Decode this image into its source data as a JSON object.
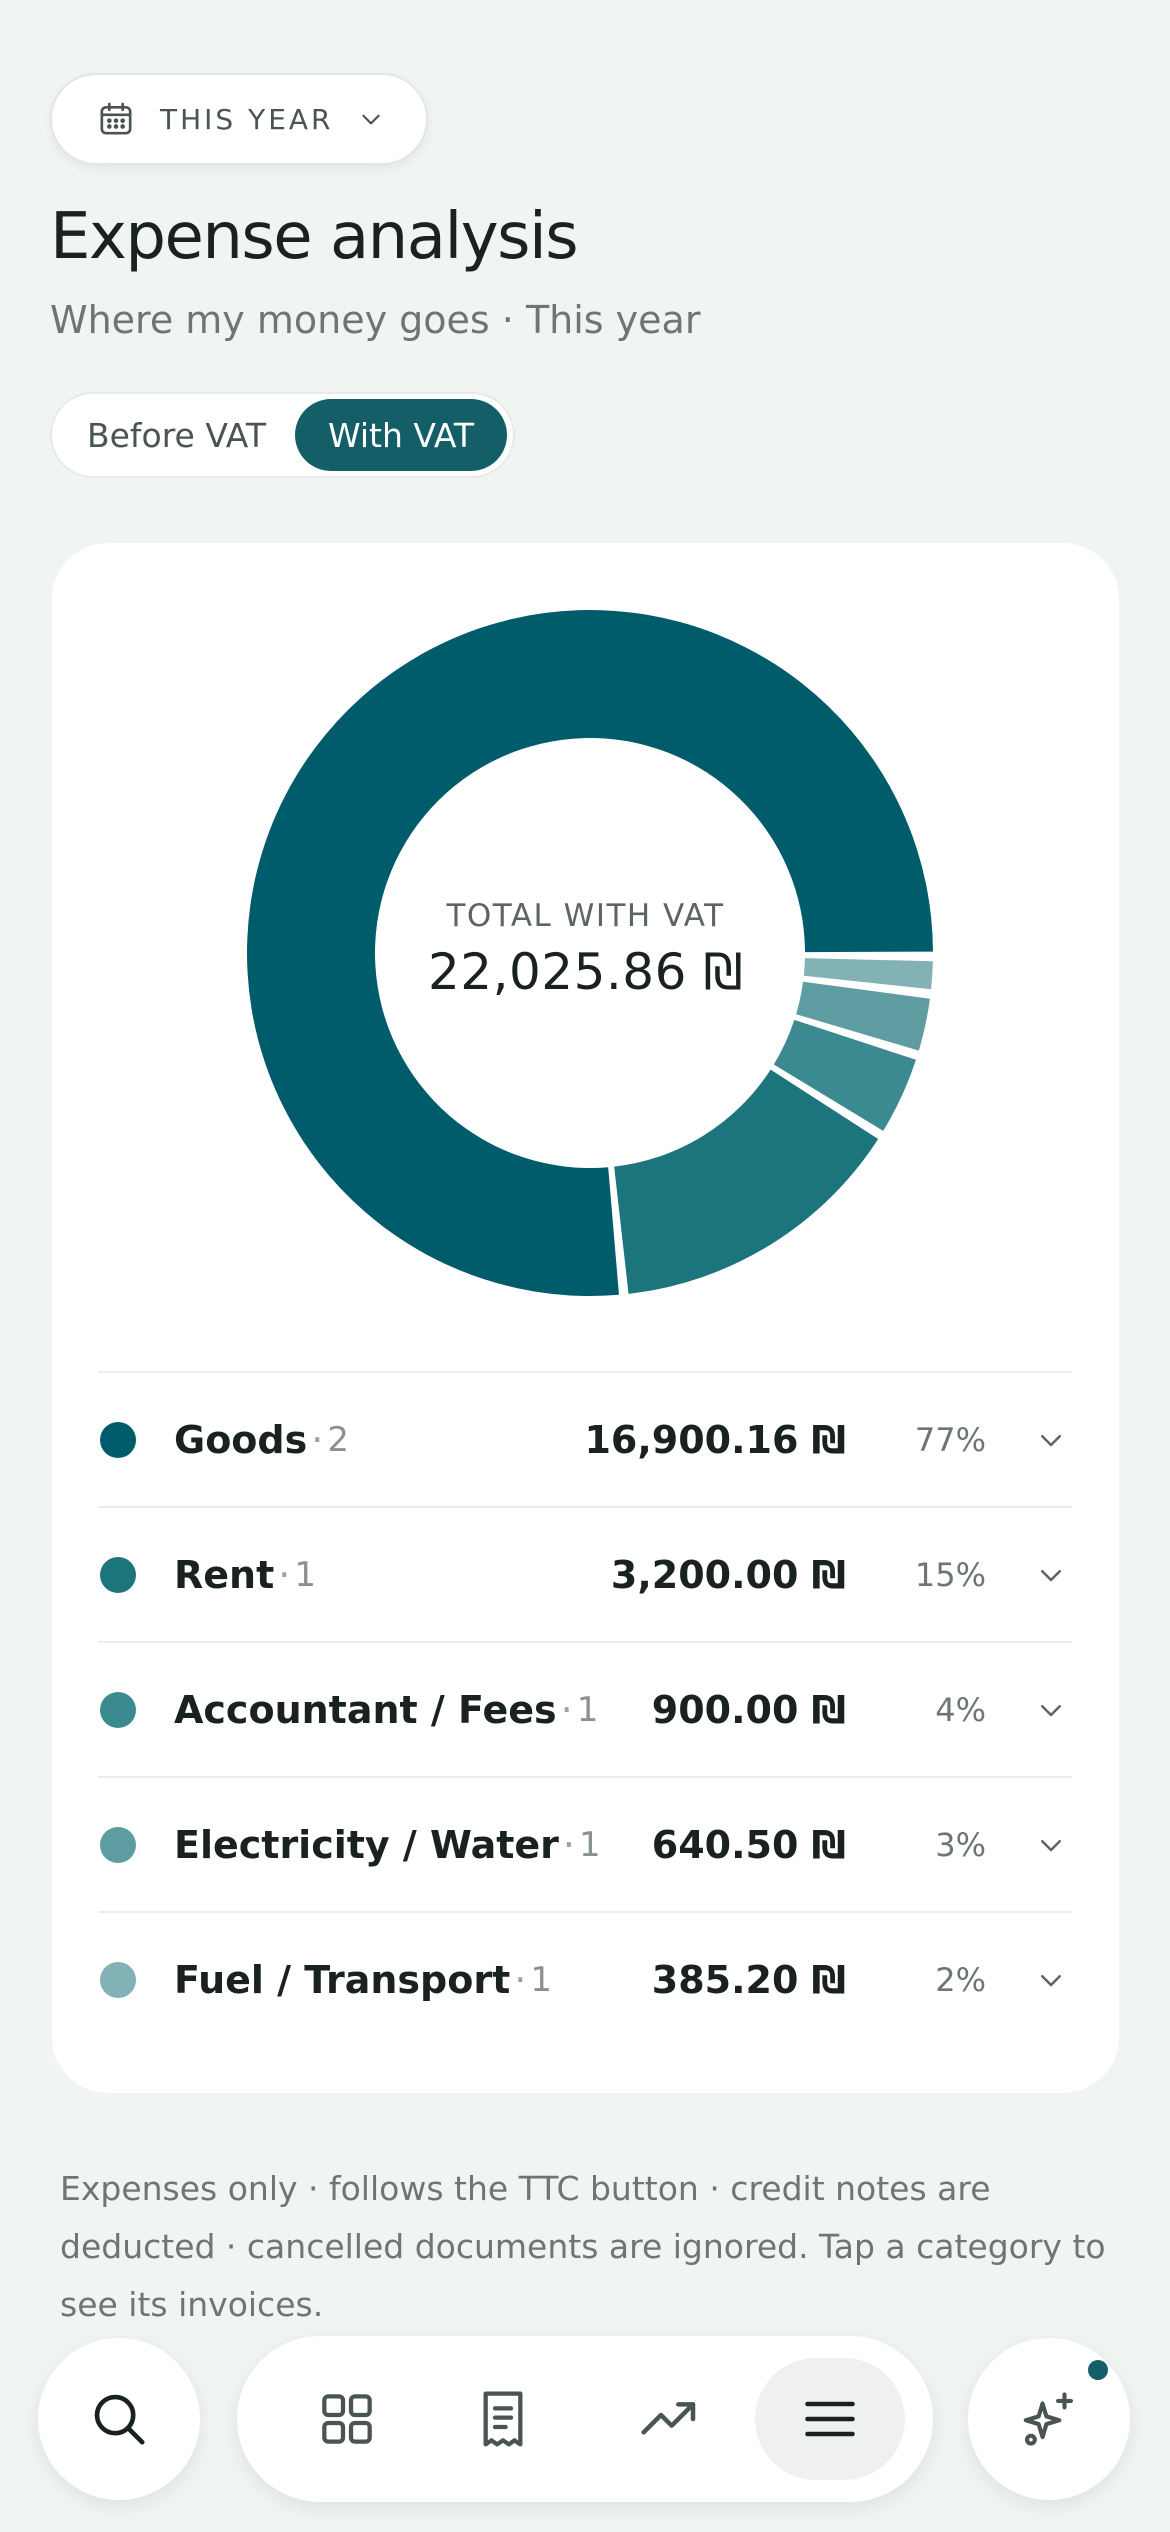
{
  "period": {
    "label": "THIS YEAR",
    "icon": "calendar-icon"
  },
  "header": {
    "title": "Expense analysis",
    "subtitle": "Where my money goes · This year"
  },
  "vat_toggle": {
    "before_label": "Before VAT",
    "with_label": "With VAT",
    "selected": "with"
  },
  "summary": {
    "center_label": "TOTAL WITH VAT",
    "center_value": "22,025.86 ₪"
  },
  "chart_data": {
    "type": "pie",
    "categories": [
      "Goods",
      "Rent",
      "Accountant / Fees",
      "Electricity / Water",
      "Fuel / Transport"
    ],
    "values": [
      16900.16,
      3200.0,
      900.0,
      640.5,
      385.2
    ],
    "colors": [
      "#005b6a",
      "#1c747c",
      "#3a8a8f",
      "#5d9ca1",
      "#82b2b5"
    ]
  },
  "categories": [
    {
      "name": "Goods",
      "count": "2",
      "amount": "16,900.16 ₪",
      "pct": "77%",
      "color": "#005b6a"
    },
    {
      "name": "Rent",
      "count": "1",
      "amount": "3,200.00 ₪",
      "pct": "15%",
      "color": "#1c747c"
    },
    {
      "name": "Accountant / Fees",
      "count": "1",
      "amount": "900.00 ₪",
      "pct": "4%",
      "color": "#3a8a8f"
    },
    {
      "name": "Electricity / Water",
      "count": "1",
      "amount": "640.50 ₪",
      "pct": "3%",
      "color": "#5d9ca1"
    },
    {
      "name": "Fuel / Transport",
      "count": "1",
      "amount": "385.20 ₪",
      "pct": "2%",
      "color": "#82b2b5"
    }
  ],
  "footnote": "Expenses only · follows the TTC button · credit notes are deducted · cancelled documents are ignored. Tap a category to see its invoices.",
  "nav": {
    "items": [
      "search-icon",
      "dashboard-icon",
      "receipt-icon",
      "trend-icon",
      "menu-icon",
      "sparkle-icon"
    ],
    "active": "menu-icon"
  },
  "colors": {
    "accent": "#145f67",
    "background": "#f1f5f2"
  }
}
